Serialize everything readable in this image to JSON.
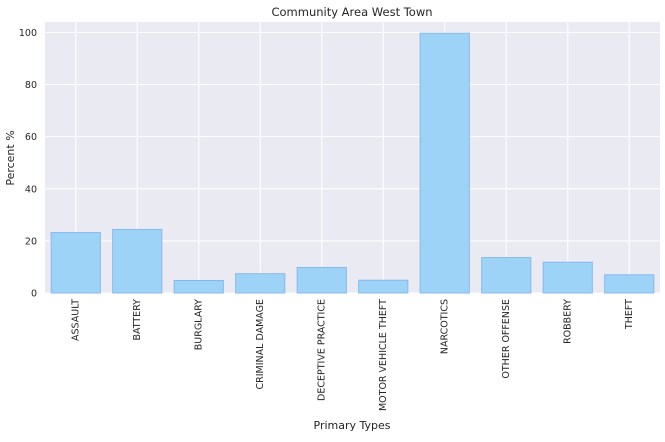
{
  "chart_data": {
    "type": "bar",
    "title": "Community Area West Town",
    "xlabel": "Primary Types",
    "ylabel": "Percent %",
    "categories": [
      "ASSAULT",
      "BATTERY",
      "BURGLARY",
      "CRIMINAL DAMAGE",
      "DECEPTIVE PRACTICE",
      "MOTOR VEHICLE THEFT",
      "NARCOTICS",
      "OTHER OFFENSE",
      "ROBBERY",
      "THEFT"
    ],
    "values": [
      23.2,
      24.4,
      4.8,
      7.4,
      9.8,
      4.9,
      99.7,
      13.6,
      11.8,
      7.0
    ],
    "ylim": [
      0,
      104
    ],
    "yticks": [
      0,
      20,
      40,
      60,
      80,
      100
    ],
    "grid": true,
    "bar_color": "#9dd3f7",
    "bar_edge_color": "#8ab8ee",
    "background_color": "#eaeaf2",
    "grid_color": "#ffffff"
  }
}
